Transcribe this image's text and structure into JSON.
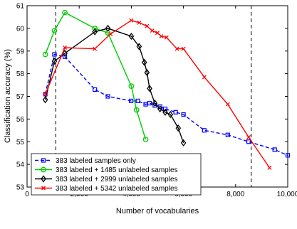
{
  "chart_data": {
    "type": "line",
    "title": "",
    "xlabel": "Number of vocabularies",
    "ylabel": "Classification accuracy (%)",
    "xlim": [
      0,
      10000
    ],
    "ylim": [
      53,
      61
    ],
    "xticks": [
      0,
      2000,
      4000,
      6000,
      8000,
      10000
    ],
    "xtick_labels": [
      "0",
      "2,000",
      "4,000",
      "6,000",
      "8,000",
      "10,000"
    ],
    "yticks": [
      53,
      54,
      55,
      56,
      57,
      58,
      59,
      60,
      61
    ],
    "ytick_labels": [
      "53",
      "54",
      "55",
      "56",
      "57",
      "58",
      "59",
      "60",
      "61"
    ],
    "grid": false,
    "legend_position": "bottom-left",
    "vertical_reference_lines": [
      1100,
      8600
    ],
    "series": [
      {
        "name": "383 labeled samples only",
        "color": "#0000ff",
        "line_style": "dashed",
        "marker": "square",
        "x": [
          700,
          1050,
          1450,
          2600,
          3100,
          3990,
          4250,
          4550,
          4700,
          4900,
          5100,
          5300,
          5700,
          6000,
          6800,
          7700,
          8500,
          9500,
          10000
        ],
        "y": [
          57.1,
          58.85,
          58.75,
          57.3,
          57.0,
          56.8,
          56.8,
          56.65,
          56.7,
          56.6,
          56.55,
          56.45,
          56.3,
          56.2,
          55.5,
          55.3,
          55.0,
          54.65,
          54.4
        ]
      },
      {
        "name": "383 labeled + 1485 unlabeled samples",
        "color": "#00cc00",
        "line_style": "solid",
        "marker": "circle",
        "x": [
          700,
          1050,
          1450,
          2600,
          3100,
          4000,
          4200,
          4550
        ],
        "y": [
          58.85,
          59.9,
          60.7,
          60.0,
          59.8,
          57.45,
          56.4,
          55.1
        ]
      },
      {
        "name": "383 labeled + 2999 unlabeled samples",
        "color": "#000000",
        "line_style": "solid",
        "marker": "diamond",
        "x": [
          700,
          1050,
          1450,
          2600,
          3100,
          4000,
          4300,
          4500,
          4600,
          4700,
          4900,
          5100,
          5300,
          5500,
          5800,
          6000
        ],
        "y": [
          56.85,
          58.55,
          58.9,
          59.85,
          60.0,
          59.65,
          59.2,
          58.5,
          58.05,
          57.35,
          56.7,
          56.45,
          56.3,
          56.2,
          55.6,
          54.95
        ]
      },
      {
        "name": "383 labeled + 5342 unlabeled samples",
        "color": "#ff0000",
        "line_style": "solid",
        "marker": "x",
        "x": [
          700,
          1450,
          2600,
          3200,
          4000,
          4300,
          4600,
          4800,
          5000,
          5150,
          5350,
          5750,
          6000,
          6800,
          7700,
          8500,
          9300
        ],
        "y": [
          57.1,
          59.15,
          59.1,
          59.75,
          60.35,
          60.25,
          60.1,
          59.9,
          59.8,
          59.65,
          59.6,
          59.1,
          59.1,
          57.85,
          56.65,
          55.2,
          53.85
        ]
      }
    ]
  }
}
